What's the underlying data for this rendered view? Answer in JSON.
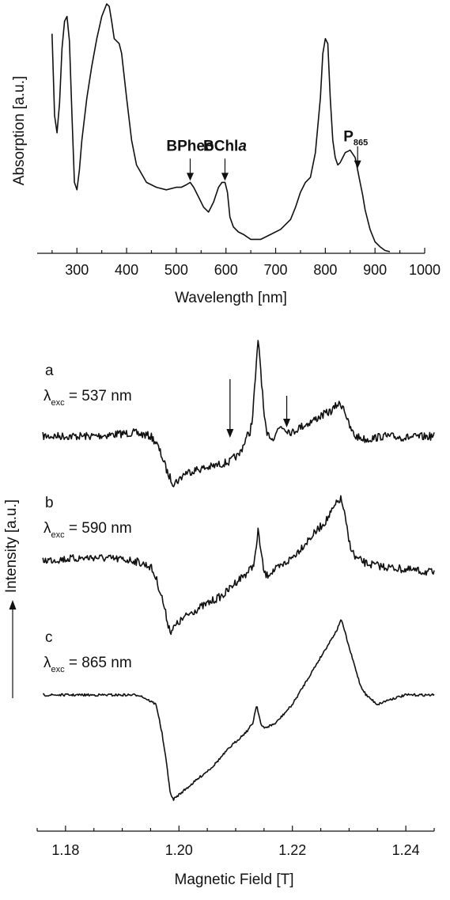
{
  "chart_data": [
    {
      "type": "line",
      "xlabel": "Wavelength [nm]",
      "ylabel": "Absorption [a.u.]",
      "xlim": [
        220,
        1000
      ],
      "xticks": [
        300,
        400,
        500,
        600,
        700,
        800,
        900,
        1000
      ],
      "ylim": [
        0,
        1.0
      ],
      "series": [
        {
          "x": [
            250,
            255,
            260,
            265,
            270,
            275,
            280,
            285,
            290,
            295,
            300,
            305,
            310,
            320,
            330,
            340,
            350,
            360,
            365,
            370,
            375,
            380,
            385,
            390,
            400,
            410,
            420,
            440,
            460,
            480,
            500,
            510,
            520,
            528,
            535,
            545,
            555,
            565,
            575,
            585,
            592,
            598,
            603,
            608,
            615,
            625,
            635,
            650,
            670,
            690,
            710,
            730,
            740,
            750,
            760,
            770,
            780,
            790,
            795,
            800,
            805,
            810,
            815,
            820,
            825,
            830,
            835,
            840,
            850,
            860,
            865,
            870,
            875,
            880,
            890,
            900,
            910,
            920,
            930
          ],
          "y": [
            0.88,
            0.55,
            0.48,
            0.6,
            0.82,
            0.93,
            0.95,
            0.85,
            0.55,
            0.28,
            0.25,
            0.33,
            0.45,
            0.62,
            0.75,
            0.86,
            0.95,
            1.0,
            0.99,
            0.93,
            0.86,
            0.85,
            0.84,
            0.8,
            0.62,
            0.45,
            0.35,
            0.28,
            0.26,
            0.25,
            0.26,
            0.26,
            0.27,
            0.28,
            0.26,
            0.22,
            0.18,
            0.16,
            0.2,
            0.26,
            0.28,
            0.28,
            0.24,
            0.14,
            0.1,
            0.08,
            0.07,
            0.05,
            0.05,
            0.07,
            0.09,
            0.13,
            0.18,
            0.24,
            0.28,
            0.3,
            0.4,
            0.62,
            0.8,
            0.86,
            0.84,
            0.62,
            0.45,
            0.38,
            0.35,
            0.36,
            0.38,
            0.4,
            0.41,
            0.38,
            0.33,
            0.28,
            0.23,
            0.17,
            0.09,
            0.04,
            0.02,
            0.005,
            0.0
          ]
        }
      ],
      "annotations": [
        {
          "text": "BPheo",
          "x": 528
        },
        {
          "text": "BChl",
          "suffix": "a",
          "x": 598
        },
        {
          "text": "P",
          "suffix": "865",
          "x": 865
        }
      ]
    },
    {
      "type": "line",
      "xlabel": "Magnetic Field [T]",
      "ylabel": "Intensity [a.u.]",
      "xlim": [
        1.175,
        1.245
      ],
      "xticks": [
        1.18,
        1.2,
        1.22,
        1.24
      ],
      "xticklabels": [
        "1.18",
        "1.20",
        "1.22",
        "1.24"
      ],
      "series": [
        {
          "name": "a",
          "label": "λexc = 537 nm",
          "x": [
            1.176,
            1.185,
            1.192,
            1.195,
            1.196,
            1.197,
            1.198,
            1.199,
            1.2,
            1.201,
            1.203,
            1.206,
            1.208,
            1.209,
            1.21,
            1.2105,
            1.211,
            1.212,
            1.2125,
            1.213,
            1.2135,
            1.214,
            1.2145,
            1.215,
            1.2155,
            1.216,
            1.2165,
            1.217,
            1.218,
            1.219,
            1.22,
            1.221,
            1.223,
            1.225,
            1.227,
            1.228,
            1.229,
            1.2295,
            1.23,
            1.231,
            1.233,
            1.236,
            1.24,
            1.245
          ],
          "y": [
            0.0,
            0.0,
            0.05,
            0.0,
            -0.1,
            -0.3,
            -0.55,
            -0.7,
            -0.65,
            -0.55,
            -0.5,
            -0.45,
            -0.4,
            -0.38,
            -0.3,
            -0.3,
            -0.2,
            0.0,
            0.05,
            0.3,
            0.9,
            1.45,
            0.9,
            0.3,
            0.0,
            0.02,
            -0.05,
            0.05,
            0.15,
            0.1,
            0.05,
            0.12,
            0.2,
            0.3,
            0.38,
            0.48,
            0.45,
            0.3,
            0.15,
            0.0,
            -0.05,
            0.0,
            -0.02,
            0.0
          ]
        },
        {
          "name": "b",
          "label": "λexc = 590 nm",
          "x": [
            1.176,
            1.185,
            1.192,
            1.195,
            1.196,
            1.197,
            1.198,
            1.1985,
            1.199,
            1.2,
            1.202,
            1.205,
            1.208,
            1.21,
            1.212,
            1.213,
            1.2135,
            1.214,
            1.2145,
            1.215,
            1.2155,
            1.216,
            1.218,
            1.22,
            1.222,
            1.224,
            1.226,
            1.227,
            1.228,
            1.2285,
            1.229,
            1.23,
            1.231,
            1.233,
            1.236,
            1.24,
            1.245
          ],
          "y": [
            0.0,
            0.05,
            0.0,
            -0.1,
            -0.3,
            -0.6,
            -1.0,
            -1.15,
            -1.1,
            -1.0,
            -0.85,
            -0.7,
            -0.55,
            -0.35,
            -0.2,
            -0.1,
            0.1,
            0.5,
            0.1,
            -0.2,
            -0.25,
            -0.2,
            -0.1,
            0.05,
            0.25,
            0.45,
            0.65,
            0.8,
            0.95,
            1.0,
            0.85,
            0.3,
            0.05,
            -0.05,
            -0.1,
            -0.15,
            -0.2
          ]
        },
        {
          "name": "c",
          "label": "λexc = 865 nm",
          "x": [
            1.176,
            1.185,
            1.193,
            1.196,
            1.197,
            1.198,
            1.1985,
            1.199,
            1.2,
            1.203,
            1.206,
            1.209,
            1.212,
            1.213,
            1.2137,
            1.2145,
            1.215,
            1.217,
            1.22,
            1.223,
            1.226,
            1.228,
            1.2285,
            1.229,
            1.23,
            1.231,
            1.232,
            1.233,
            1.235,
            1.237,
            1.24,
            1.245
          ],
          "y": [
            0.0,
            0.0,
            0.0,
            -0.1,
            -0.4,
            -0.8,
            -1.05,
            -1.1,
            -1.05,
            -0.9,
            -0.75,
            -0.55,
            -0.38,
            -0.3,
            -0.1,
            -0.32,
            -0.35,
            -0.3,
            -0.1,
            0.2,
            0.5,
            0.7,
            0.8,
            0.72,
            0.5,
            0.3,
            0.1,
            0.0,
            -0.1,
            -0.05,
            0.0,
            0.0
          ]
        }
      ],
      "arrows": [
        {
          "x": 1.209
        },
        {
          "x": 1.219
        }
      ]
    }
  ]
}
